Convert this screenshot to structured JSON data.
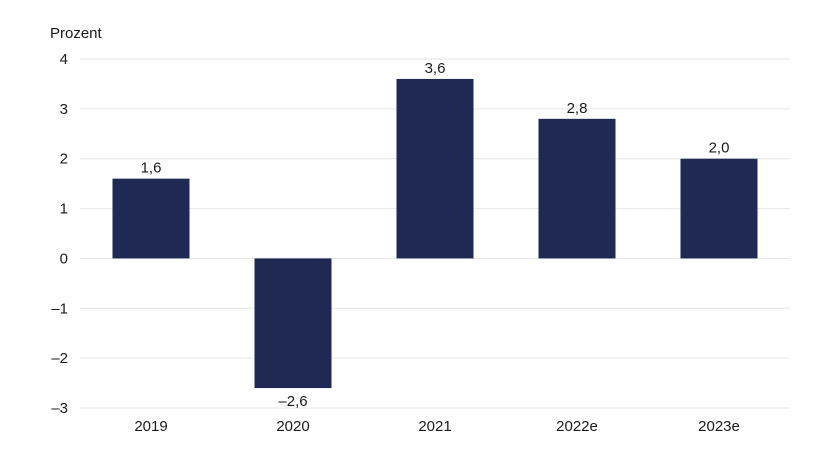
{
  "chart_data": {
    "type": "bar",
    "ylabel": "Prozent",
    "categories": [
      "2019",
      "2020",
      "2021",
      "2022e",
      "2023e"
    ],
    "values": [
      1.6,
      -2.6,
      3.6,
      2.8,
      2.0
    ],
    "value_labels": [
      "1,6",
      "–2,6",
      "3,6",
      "2,8",
      "2,0"
    ],
    "ylim": [
      -3,
      4
    ],
    "yticks": [
      4,
      3,
      2,
      1,
      0,
      -1,
      -2,
      -3
    ],
    "ytick_labels": [
      "4",
      "3",
      "2",
      "1",
      "0",
      "–1",
      "–2",
      "–3"
    ],
    "grid": true,
    "colors": {
      "bar": "#1f2954"
    }
  }
}
